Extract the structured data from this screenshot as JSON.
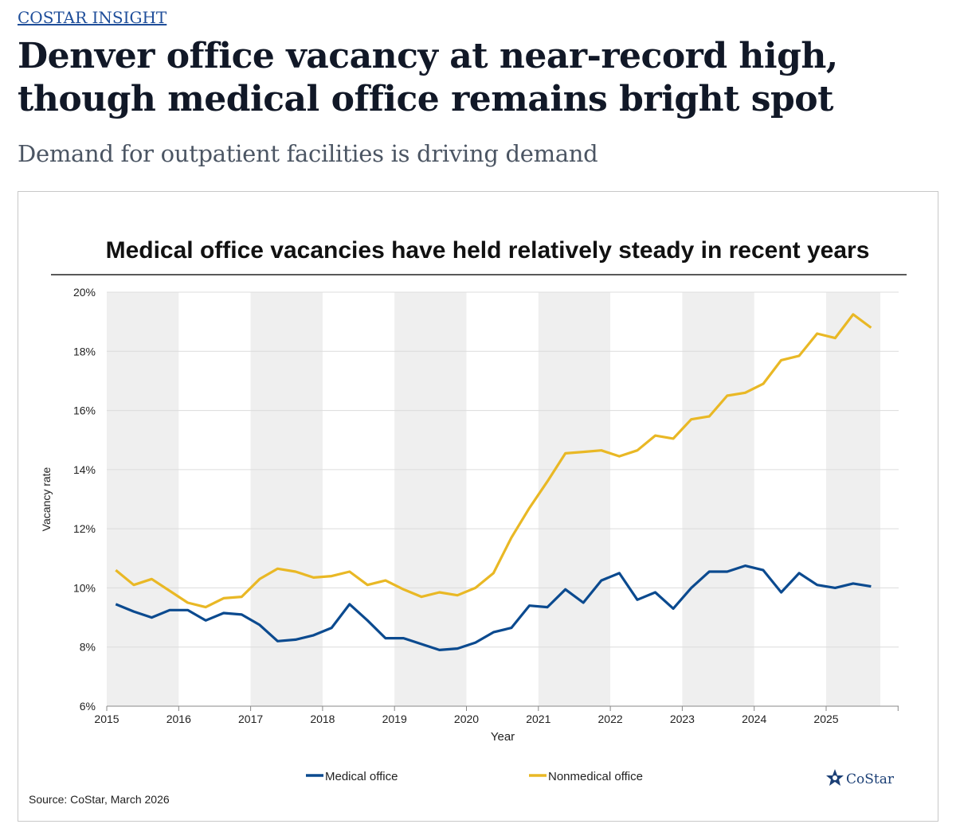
{
  "header": {
    "kicker": "COSTAR INSIGHT",
    "headline": "Denver office vacancy at near-record high, though medical office remains bright spot",
    "subheadline": "Demand for outpatient facilities is driving demand"
  },
  "chart_data": {
    "type": "line",
    "title": "Medical office vacancies have held relatively steady in recent years",
    "xlabel": "Year",
    "ylabel": "Vacancy rate",
    "x_ticks": [
      "2015",
      "2016",
      "2017",
      "2018",
      "2019",
      "2020",
      "2021",
      "2022",
      "2023",
      "2024",
      "2025"
    ],
    "y_ticks": [
      "6%",
      "8%",
      "10%",
      "12%",
      "14%",
      "16%",
      "18%",
      "20%"
    ],
    "ylim": [
      6,
      20
    ],
    "x_range": [
      "2015 Q1",
      "2025 Q3"
    ],
    "frequency": "quarterly",
    "grid": true,
    "alternating_year_shading": true,
    "legend_position": "bottom",
    "series": [
      {
        "name": "Medical office",
        "color": "#0b4a8f",
        "values": [
          9.45,
          9.2,
          9.0,
          9.25,
          9.25,
          8.9,
          9.15,
          9.1,
          8.75,
          8.2,
          8.25,
          8.4,
          8.65,
          9.45,
          8.9,
          8.3,
          8.3,
          8.1,
          7.9,
          7.95,
          8.15,
          8.5,
          8.65,
          9.4,
          9.35,
          9.95,
          9.5,
          10.25,
          10.5,
          9.6,
          9.85,
          9.3,
          10.0,
          10.55,
          10.55,
          10.75,
          10.6,
          9.85,
          10.5,
          10.1,
          10.0,
          10.15,
          10.05
        ]
      },
      {
        "name": "Nonmedical office",
        "color": "#e9b825",
        "values": [
          10.6,
          10.1,
          10.3,
          9.9,
          9.5,
          9.35,
          9.65,
          9.7,
          10.3,
          10.65,
          10.55,
          10.35,
          10.4,
          10.55,
          10.1,
          10.25,
          9.95,
          9.7,
          9.85,
          9.75,
          10.0,
          10.5,
          11.7,
          12.7,
          13.6,
          14.55,
          14.6,
          14.65,
          14.45,
          14.65,
          15.15,
          15.05,
          15.7,
          15.8,
          16.5,
          16.6,
          16.9,
          17.7,
          17.85,
          18.6,
          18.45,
          19.25,
          18.8
        ]
      }
    ],
    "source": "Source: CoStar,  March 2026",
    "logo_text": "CoStar"
  }
}
